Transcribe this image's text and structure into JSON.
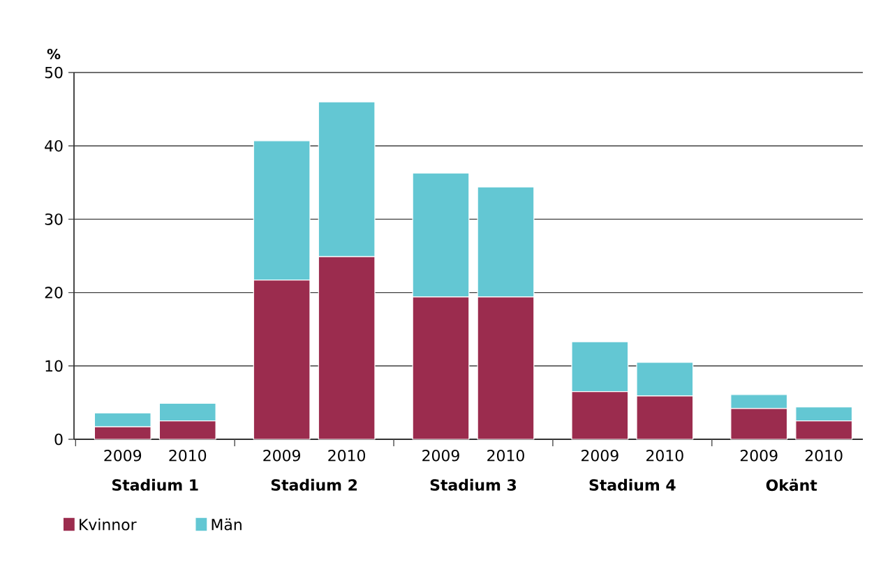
{
  "chart_data": {
    "type": "bar",
    "stacked": true,
    "ylabel": "%",
    "categories": [
      "2009",
      "2010",
      "2009",
      "2010",
      "2009",
      "2010",
      "2009",
      "2010",
      "2009",
      "2010"
    ],
    "annotations": [
      "Stadium 1",
      "Stadium 2",
      "Stadium 3",
      "Stadium 4",
      "Okänt"
    ],
    "series": [
      {
        "name": "Kvinnor",
        "color": "#9b2c4e",
        "values": [
          1.7,
          2.5,
          21.7,
          24.9,
          19.4,
          19.4,
          6.5,
          5.9,
          4.2,
          2.5
        ]
      },
      {
        "name": "Män",
        "color": "#63c7d3",
        "values": [
          1.9,
          2.4,
          19.0,
          21.1,
          16.9,
          15.0,
          6.8,
          4.6,
          1.9,
          1.9
        ]
      }
    ],
    "ylim": [
      0,
      50
    ],
    "yticks": [
      0,
      10,
      20,
      30,
      40,
      50
    ],
    "grid": "y",
    "legend": "bottom left"
  }
}
